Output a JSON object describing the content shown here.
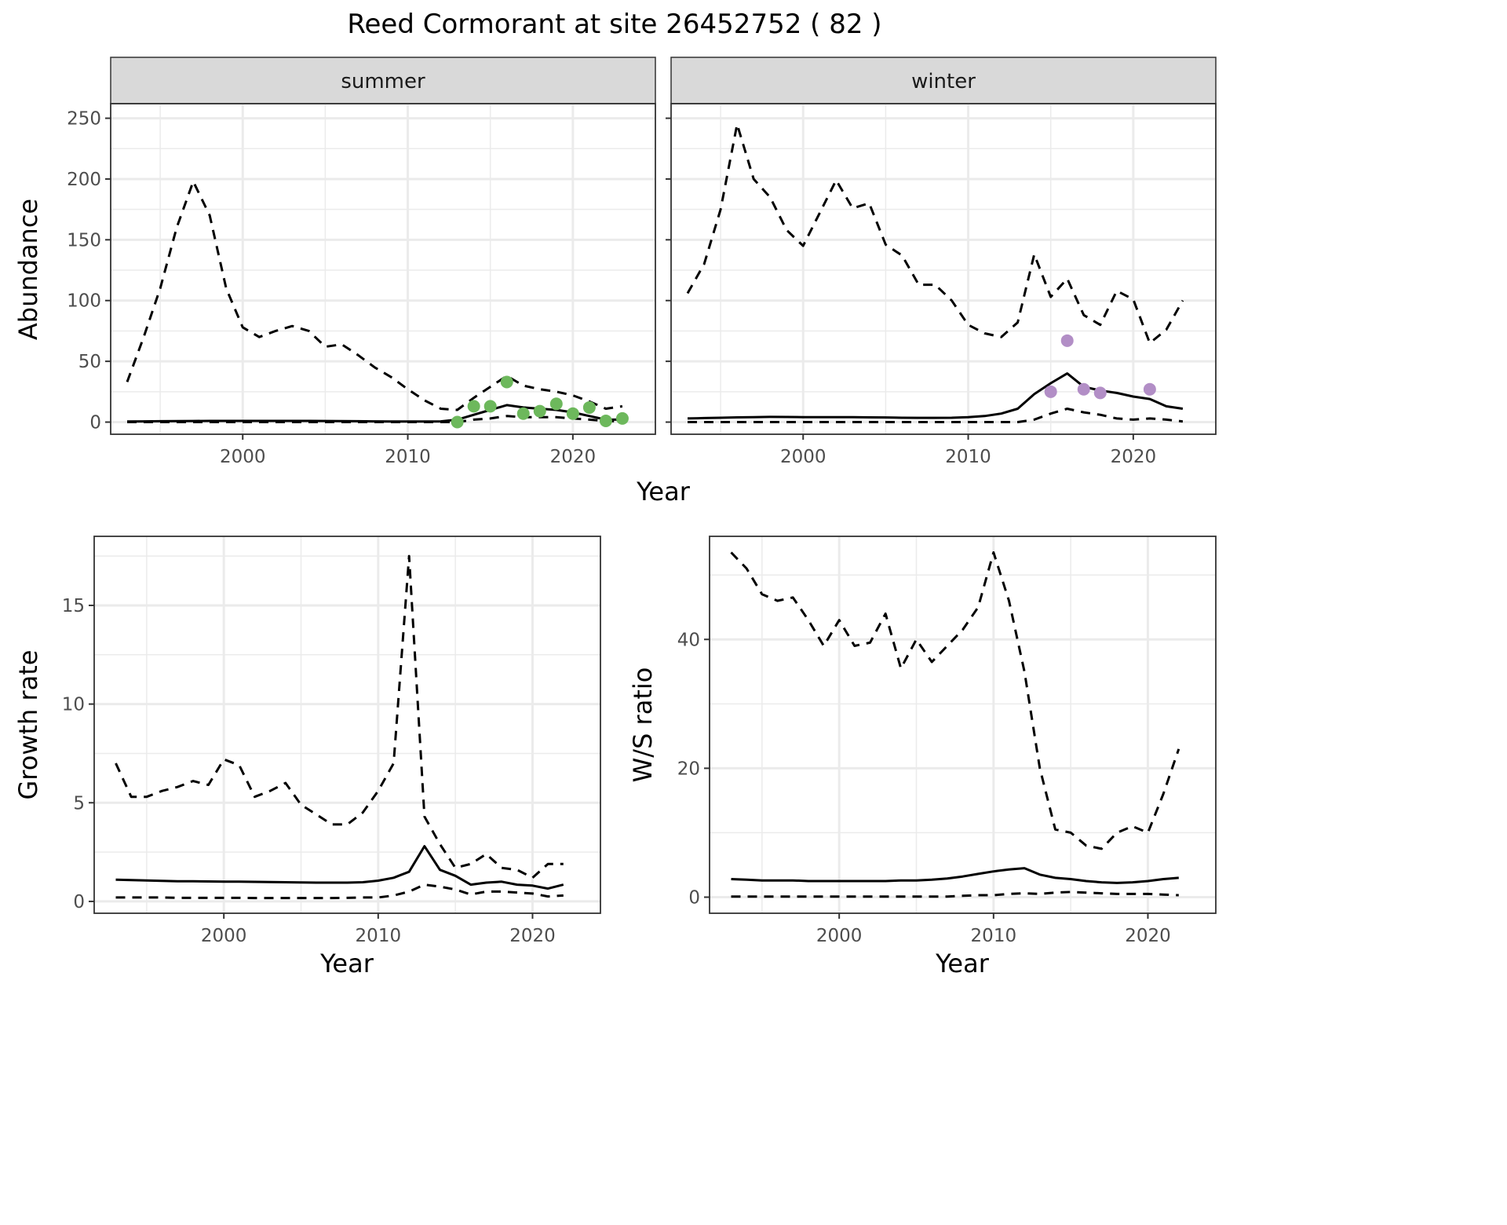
{
  "title": "Reed Cormorant at site 26452752 ( 82 )",
  "chart_data": [
    {
      "type": "line",
      "panel": "summer",
      "strip": "summer",
      "xlabel": "Year",
      "ylabel": "Abundance",
      "xlim": [
        1992,
        2025
      ],
      "ylim": [
        -10,
        262
      ],
      "xticks": [
        2000,
        2010,
        2020
      ],
      "yticks": [
        0,
        50,
        100,
        150,
        200,
        250
      ],
      "x": [
        1993,
        1994,
        1995,
        1996,
        1997,
        1998,
        1999,
        2000,
        2001,
        2002,
        2003,
        2004,
        2005,
        2006,
        2007,
        2008,
        2009,
        2010,
        2011,
        2012,
        2013,
        2014,
        2015,
        2016,
        2017,
        2018,
        2019,
        2020,
        2021,
        2022,
        2023
      ],
      "series": [
        {
          "name": "upper",
          "style": "dashed",
          "values": [
            33,
            70,
            110,
            160,
            198,
            170,
            110,
            78,
            70,
            75,
            79,
            75,
            62,
            64,
            55,
            45,
            37,
            27,
            18,
            11,
            10,
            20,
            29,
            38,
            30,
            27,
            25,
            22,
            17,
            11,
            13
          ]
        },
        {
          "name": "mean",
          "style": "solid",
          "values": [
            0.5,
            0.6,
            0.7,
            0.8,
            0.9,
            1,
            1,
            1,
            1,
            1,
            1,
            1,
            0.9,
            0.8,
            0.7,
            0.6,
            0.5,
            0.5,
            0.5,
            0.6,
            2,
            6,
            10,
            14,
            12,
            11,
            10,
            8,
            5,
            2,
            2
          ]
        },
        {
          "name": "lower",
          "style": "dashed",
          "values": [
            0,
            0,
            0,
            0,
            0,
            0,
            0,
            0,
            0,
            0,
            0,
            0,
            0,
            0,
            0,
            0,
            0,
            0,
            0,
            0,
            0,
            2,
            3,
            5,
            4,
            4,
            4,
            3,
            2,
            1,
            0.5
          ]
        }
      ],
      "points": {
        "color": "#6DB85C",
        "x": [
          2013,
          2014,
          2015,
          2016,
          2017,
          2018,
          2019,
          2020,
          2021,
          2022,
          2023
        ],
        "y": [
          0,
          13,
          13,
          33,
          7,
          9,
          15,
          7,
          12,
          1,
          3
        ]
      }
    },
    {
      "type": "line",
      "panel": "winter",
      "strip": "winter",
      "xlabel": "Year",
      "ylabel": "",
      "xlim": [
        1992,
        2025
      ],
      "ylim": [
        -10,
        262
      ],
      "xticks": [
        2000,
        2010,
        2020
      ],
      "yticks": [
        0,
        50,
        100,
        150,
        200,
        250
      ],
      "x": [
        1993,
        1994,
        1995,
        1996,
        1997,
        1998,
        1999,
        2000,
        2001,
        2002,
        2003,
        2004,
        2005,
        2006,
        2007,
        2008,
        2009,
        2010,
        2011,
        2012,
        2013,
        2014,
        2015,
        2016,
        2017,
        2018,
        2019,
        2020,
        2021,
        2022,
        2023
      ],
      "series": [
        {
          "name": "upper",
          "style": "dashed",
          "values": [
            106,
            130,
            175,
            245,
            200,
            185,
            158,
            145,
            172,
            199,
            176,
            180,
            146,
            137,
            113,
            113,
            100,
            80,
            73,
            70,
            82,
            138,
            103,
            118,
            88,
            80,
            108,
            101,
            65,
            76,
            100
          ]
        },
        {
          "name": "mean",
          "style": "solid",
          "values": [
            3,
            3.3,
            3.6,
            3.9,
            4.1,
            4.3,
            4.2,
            4.1,
            4.1,
            4.1,
            4,
            3.9,
            3.8,
            3.6,
            3.5,
            3.5,
            3.6,
            4,
            5,
            7,
            11,
            23,
            32,
            40,
            29,
            26,
            24,
            21,
            19,
            13,
            11
          ]
        },
        {
          "name": "lower",
          "style": "dashed",
          "values": [
            0,
            0,
            0,
            0,
            0,
            0,
            0,
            0,
            0,
            0,
            0,
            0,
            0,
            0,
            0,
            0,
            0,
            0,
            0,
            0,
            0,
            2,
            7,
            11,
            8,
            6,
            3,
            2,
            3,
            2,
            0.5
          ]
        }
      ],
      "points": {
        "color": "#B28EC6",
        "x": [
          2015,
          2016,
          2017,
          2018,
          2021
        ],
        "y": [
          25,
          67,
          27,
          24,
          27
        ]
      }
    },
    {
      "type": "line",
      "panel": "growth",
      "xlabel": "Year",
      "ylabel": "Growth rate",
      "xlim": [
        1991.6,
        2024.4
      ],
      "ylim": [
        -0.6,
        18.5
      ],
      "xticks": [
        2000,
        2010,
        2020
      ],
      "yticks": [
        0,
        5,
        10,
        15
      ],
      "x": [
        1993,
        1994,
        1995,
        1996,
        1997,
        1998,
        1999,
        2000,
        2001,
        2002,
        2003,
        2004,
        2005,
        2006,
        2007,
        2008,
        2009,
        2010,
        2011,
        2012,
        2013,
        2014,
        2015,
        2016,
        2017,
        2018,
        2019,
        2020,
        2021,
        2022
      ],
      "series": [
        {
          "name": "upper",
          "style": "dashed",
          "values": [
            7,
            5.3,
            5.3,
            5.6,
            5.8,
            6.1,
            5.9,
            7.2,
            6.9,
            5.3,
            5.6,
            6,
            4.9,
            4.4,
            3.9,
            3.9,
            4.5,
            5.6,
            7,
            17.5,
            4.3,
            2.9,
            1.7,
            1.9,
            2.4,
            1.7,
            1.6,
            1.2,
            1.9,
            1.9
          ]
        },
        {
          "name": "mean",
          "style": "solid",
          "values": [
            1.1,
            1.08,
            1.06,
            1.04,
            1.02,
            1.02,
            1.01,
            1,
            1,
            0.99,
            0.98,
            0.97,
            0.96,
            0.95,
            0.95,
            0.95,
            0.97,
            1.05,
            1.2,
            1.5,
            2.8,
            1.6,
            1.3,
            0.85,
            0.95,
            1,
            0.85,
            0.8,
            0.65,
            0.85
          ]
        },
        {
          "name": "lower",
          "style": "dashed",
          "values": [
            0.2,
            0.2,
            0.2,
            0.2,
            0.18,
            0.18,
            0.18,
            0.18,
            0.18,
            0.17,
            0.17,
            0.17,
            0.17,
            0.17,
            0.17,
            0.18,
            0.2,
            0.2,
            0.3,
            0.5,
            0.85,
            0.75,
            0.6,
            0.35,
            0.5,
            0.5,
            0.45,
            0.4,
            0.25,
            0.3
          ]
        }
      ]
    },
    {
      "type": "line",
      "panel": "ws",
      "xlabel": "Year",
      "ylabel": "W/S ratio",
      "xlim": [
        1991.6,
        2024.4
      ],
      "ylim": [
        -2.5,
        56
      ],
      "xticks": [
        2000,
        2010,
        2020
      ],
      "yticks": [
        0,
        20,
        40
      ],
      "x": [
        1993,
        1994,
        1995,
        1996,
        1997,
        1998,
        1999,
        2000,
        2001,
        2002,
        2003,
        2004,
        2005,
        2006,
        2007,
        2008,
        2009,
        2010,
        2011,
        2012,
        2013,
        2014,
        2015,
        2016,
        2017,
        2018,
        2019,
        2020,
        2021,
        2022
      ],
      "series": [
        {
          "name": "upper",
          "style": "dashed",
          "values": [
            53.5,
            51,
            47,
            46,
            46.5,
            43,
            39,
            43,
            39,
            39.5,
            44,
            35.5,
            40,
            36.5,
            39,
            41.5,
            45,
            53.5,
            46,
            35,
            20,
            10.5,
            10,
            8,
            7.5,
            10,
            11,
            10,
            16,
            23
          ]
        },
        {
          "name": "mean",
          "style": "solid",
          "values": [
            2.8,
            2.7,
            2.6,
            2.6,
            2.6,
            2.5,
            2.5,
            2.5,
            2.5,
            2.5,
            2.5,
            2.6,
            2.6,
            2.7,
            2.9,
            3.2,
            3.6,
            4,
            4.3,
            4.5,
            3.5,
            3,
            2.8,
            2.5,
            2.3,
            2.2,
            2.3,
            2.5,
            2.8,
            3
          ]
        },
        {
          "name": "lower",
          "style": "dashed",
          "values": [
            0.1,
            0.1,
            0.1,
            0.1,
            0.1,
            0.1,
            0.1,
            0.1,
            0.1,
            0.1,
            0.1,
            0.1,
            0.1,
            0.1,
            0.1,
            0.2,
            0.3,
            0.3,
            0.5,
            0.6,
            0.5,
            0.7,
            0.8,
            0.7,
            0.6,
            0.5,
            0.5,
            0.5,
            0.4,
            0.3
          ]
        }
      ]
    }
  ],
  "shared_xlabel_top": "Year"
}
